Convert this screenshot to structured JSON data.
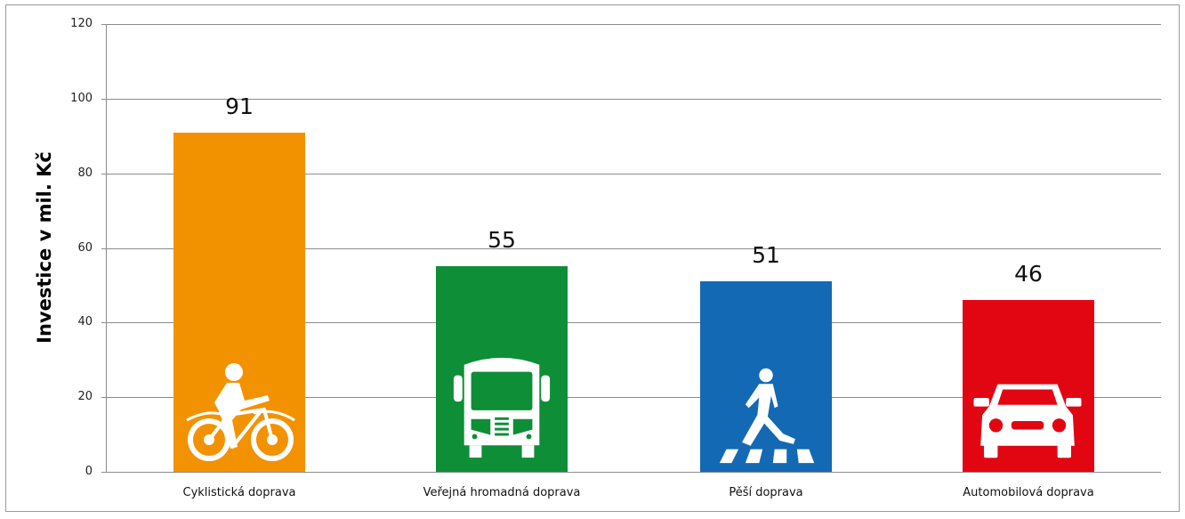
{
  "chart_data": {
    "type": "bar",
    "title": "",
    "xlabel": "",
    "ylabel": "Investice v mil. Kč",
    "ylim": [
      0,
      120
    ],
    "yticks": [
      "0",
      "20",
      "40",
      "60",
      "80",
      "100",
      "120"
    ],
    "grid": true,
    "legend": "none",
    "categories": [
      "Cyklistická doprava",
      "Veřejná hromadná doprava",
      "Pěší doprava",
      "Automobilová doprava"
    ],
    "values": [
      91,
      55,
      51,
      46
    ],
    "value_labels": [
      "91",
      "55",
      "51",
      "46"
    ],
    "colors": [
      "#F39200",
      "#0E8E36",
      "#1369B4",
      "#E20613"
    ],
    "icons": [
      "bicycle-icon",
      "bus-icon",
      "pedestrian-crossing-icon",
      "car-icon"
    ]
  }
}
